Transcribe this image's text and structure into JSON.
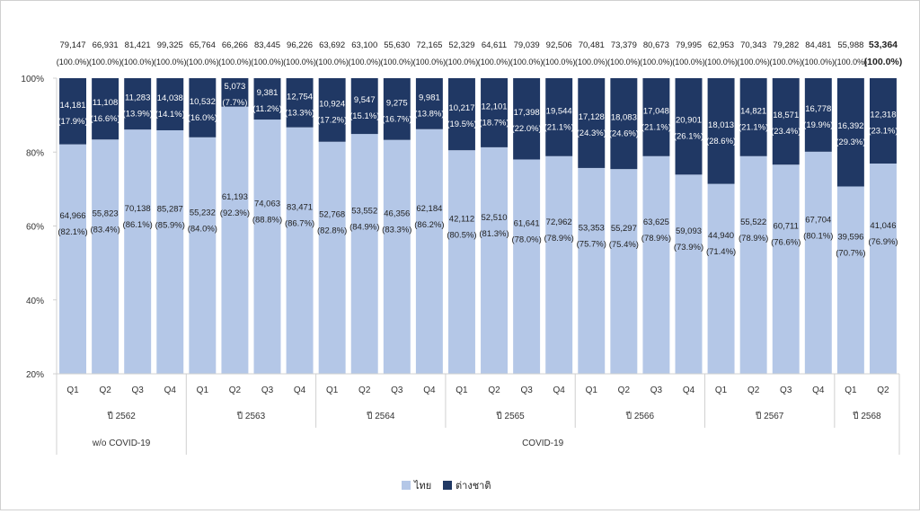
{
  "chart_data": {
    "type": "bar",
    "stacked": true,
    "normalized_percent": true,
    "title": "",
    "xlabel": "",
    "ylabel": "",
    "ylim": [
      20,
      100
    ],
    "yticks": [
      "20%",
      "40%",
      "60%",
      "80%",
      "100%"
    ],
    "ytick_values": [
      20,
      40,
      60,
      80,
      100
    ],
    "grid": false,
    "legend_position": "bottom-center",
    "colors": {
      "thai": "#b4c7e7",
      "foreign": "#203864"
    },
    "categories": [
      "Q1",
      "Q2",
      "Q3",
      "Q4",
      "Q1",
      "Q2",
      "Q3",
      "Q4",
      "Q1",
      "Q2",
      "Q3",
      "Q4",
      "Q1",
      "Q2",
      "Q3",
      "Q4",
      "Q1",
      "Q2",
      "Q3",
      "Q4",
      "Q1",
      "Q2",
      "Q3",
      "Q4",
      "Q1",
      "Q2"
    ],
    "year_groups": [
      {
        "label": "ปี 2562",
        "count": 4
      },
      {
        "label": "ปี 2563",
        "count": 4
      },
      {
        "label": "ปี 2564",
        "count": 4
      },
      {
        "label": "ปี 2565",
        "count": 4
      },
      {
        "label": "ปี 2566",
        "count": 4
      },
      {
        "label": "ปี 2567",
        "count": 4
      },
      {
        "label": "ปี 2568",
        "count": 2
      }
    ],
    "period_groups": [
      {
        "label": "w/o COVID-19",
        "count": 4
      },
      {
        "label": "COVID-19",
        "count": 22
      }
    ],
    "totals": [
      "79,147",
      "66,931",
      "81,421",
      "99,325",
      "65,764",
      "66,266",
      "83,445",
      "96,226",
      "63,692",
      "63,100",
      "55,630",
      "72,165",
      "52,329",
      "64,611",
      "79,039",
      "92,506",
      "70,481",
      "73,379",
      "80,673",
      "79,995",
      "62,953",
      "70,343",
      "79,282",
      "84,481",
      "55,988",
      "53,364"
    ],
    "total_pct_label": "(100.0%)",
    "series": [
      {
        "name": "ไทย",
        "values": [
          64966,
          55823,
          70138,
          85287,
          55232,
          61193,
          74063,
          83471,
          52768,
          53552,
          46356,
          62184,
          42112,
          52510,
          61641,
          72962,
          53353,
          55297,
          63625,
          59093,
          44940,
          55522,
          60711,
          67704,
          39596,
          41046
        ],
        "value_labels": [
          "64,966",
          "55,823",
          "70,138",
          "85,287",
          "55,232",
          "61,193",
          "74,063",
          "83,471",
          "52,768",
          "53,552",
          "46,356",
          "62,184",
          "42,112",
          "52,510",
          "61,641",
          "72,962",
          "53,353",
          "55,297",
          "63,625",
          "59,093",
          "44,940",
          "55,522",
          "60,711",
          "67,704",
          "39,596",
          "41,046"
        ],
        "percents": [
          82.1,
          83.4,
          86.1,
          85.9,
          84.0,
          92.3,
          88.8,
          86.7,
          82.8,
          84.9,
          83.3,
          86.2,
          80.5,
          81.3,
          78.0,
          78.9,
          75.7,
          75.4,
          78.9,
          73.9,
          71.4,
          78.9,
          76.6,
          80.1,
          70.7,
          76.9
        ],
        "percent_labels": [
          "(82.1%)",
          "(83.4%)",
          "(86.1%)",
          "(85.9%)",
          "(84.0%)",
          "(92.3%)",
          "(88.8%)",
          "(86.7%)",
          "(82.8%)",
          "(84.9%)",
          "(83.3%)",
          "(86.2%)",
          "(80.5%)",
          "(81.3%)",
          "(78.0%)",
          "(78.9%)",
          "(75.7%)",
          "(75.4%)",
          "(78.9%)",
          "(73.9%)",
          "(71.4%)",
          "(78.9%)",
          "(76.6%)",
          "(80.1%)",
          "(70.7%)",
          "(76.9%)"
        ]
      },
      {
        "name": "ต่างชาติ",
        "values": [
          14181,
          11108,
          11283,
          14038,
          10532,
          5073,
          9381,
          12754,
          10924,
          9547,
          9275,
          9981,
          10217,
          12101,
          17398,
          19544,
          17128,
          18083,
          17048,
          20901,
          18013,
          14821,
          18571,
          16778,
          16392,
          12318
        ],
        "value_labels": [
          "14,181",
          "11,108",
          "11,283",
          "14,038",
          "10,532",
          "5,073",
          "9,381",
          "12,754",
          "10,924",
          "9,547",
          "9,275",
          "9,981",
          "10,217",
          "12,101",
          "17,398",
          "19,544",
          "17,128",
          "18,083",
          "17,048",
          "20,901",
          "18,013",
          "14,821",
          "18,571",
          "16,778",
          "16,392",
          "12,318"
        ],
        "percents": [
          17.9,
          16.6,
          13.9,
          14.1,
          16.0,
          7.7,
          11.2,
          13.3,
          17.2,
          15.1,
          16.7,
          13.8,
          19.5,
          18.7,
          22.0,
          21.1,
          24.3,
          24.6,
          21.1,
          26.1,
          28.6,
          21.1,
          23.4,
          19.9,
          29.3,
          23.1
        ],
        "percent_labels": [
          "(17.9%)",
          "(16.6%)",
          "(13.9%)",
          "(14.1%)",
          "(16.0%)",
          "(7.7%)",
          "(11.2%)",
          "(13.3%)",
          "(17.2%)",
          "(15.1%)",
          "(16.7%)",
          "(13.8%)",
          "(19.5%)",
          "(18.7%)",
          "(22.0%)",
          "(21.1%)",
          "(24.3%)",
          "(24.6%)",
          "(21.1%)",
          "(26.1%)",
          "(28.6%)",
          "(21.1%)",
          "(23.4%)",
          "(19.9%)",
          "(29.3%)",
          "(23.1%)"
        ]
      }
    ],
    "highlight_last_total": true
  }
}
